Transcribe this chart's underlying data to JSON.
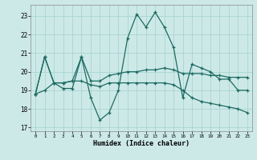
{
  "xlabel": "Humidex (Indice chaleur)",
  "xlim": [
    -0.5,
    23.5
  ],
  "ylim": [
    16.8,
    23.6
  ],
  "yticks": [
    17,
    18,
    19,
    20,
    21,
    22,
    23
  ],
  "xticks": [
    0,
    1,
    2,
    3,
    4,
    5,
    6,
    7,
    8,
    9,
    10,
    11,
    12,
    13,
    14,
    15,
    16,
    17,
    18,
    19,
    20,
    21,
    22,
    23
  ],
  "background_color": "#cce9e8",
  "grid_color": "#aad4d2",
  "line_color": "#1e6b62",
  "lines": [
    [
      18.8,
      20.8,
      19.4,
      19.1,
      19.1,
      20.8,
      18.6,
      17.4,
      17.8,
      19.0,
      21.8,
      23.1,
      22.4,
      23.2,
      22.4,
      21.3,
      18.6,
      20.4,
      20.2,
      20.0,
      19.6,
      19.6,
      19.0,
      19.0
    ],
    [
      18.8,
      20.8,
      19.4,
      19.4,
      19.5,
      20.8,
      19.5,
      19.5,
      19.8,
      19.9,
      20.0,
      20.0,
      20.1,
      20.1,
      20.2,
      20.1,
      19.9,
      19.9,
      19.9,
      19.8,
      19.8,
      19.7,
      19.7,
      19.7
    ],
    [
      18.8,
      19.0,
      19.4,
      19.4,
      19.5,
      19.5,
      19.3,
      19.2,
      19.4,
      19.4,
      19.4,
      19.4,
      19.4,
      19.4,
      19.4,
      19.3,
      19.0,
      18.6,
      18.4,
      18.3,
      18.2,
      18.1,
      18.0,
      17.8
    ]
  ]
}
